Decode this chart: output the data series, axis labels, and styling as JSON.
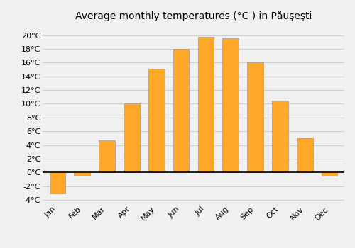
{
  "title": "Average monthly temperatures (°C ) in Păuşeşti",
  "months": [
    "Jan",
    "Feb",
    "Mar",
    "Apr",
    "May",
    "Jun",
    "Jul",
    "Aug",
    "Sep",
    "Oct",
    "Nov",
    "Dec"
  ],
  "values": [
    -3.1,
    -0.5,
    4.7,
    10.0,
    15.1,
    18.0,
    19.7,
    19.5,
    16.0,
    10.5,
    5.0,
    -0.5
  ],
  "bar_color": "#FFA726",
  "bar_edge_color": "#999999",
  "bar_edge_width": 0.5,
  "ylim": [
    -4.5,
    21.5
  ],
  "yticks": [
    -4,
    -2,
    0,
    2,
    4,
    6,
    8,
    10,
    12,
    14,
    16,
    18,
    20
  ],
  "ytick_labels": [
    "-4°C",
    "-2°C",
    "0°C",
    "2°C",
    "4°C",
    "6°C",
    "8°C",
    "10°C",
    "12°C",
    "14°C",
    "16°C",
    "18°C",
    "20°C"
  ],
  "background_color": "#f0f0f0",
  "plot_bg_color": "#f0f0f0",
  "grid_color": "#d0d0d0",
  "title_fontsize": 10,
  "tick_fontsize": 8,
  "bar_width": 0.65
}
